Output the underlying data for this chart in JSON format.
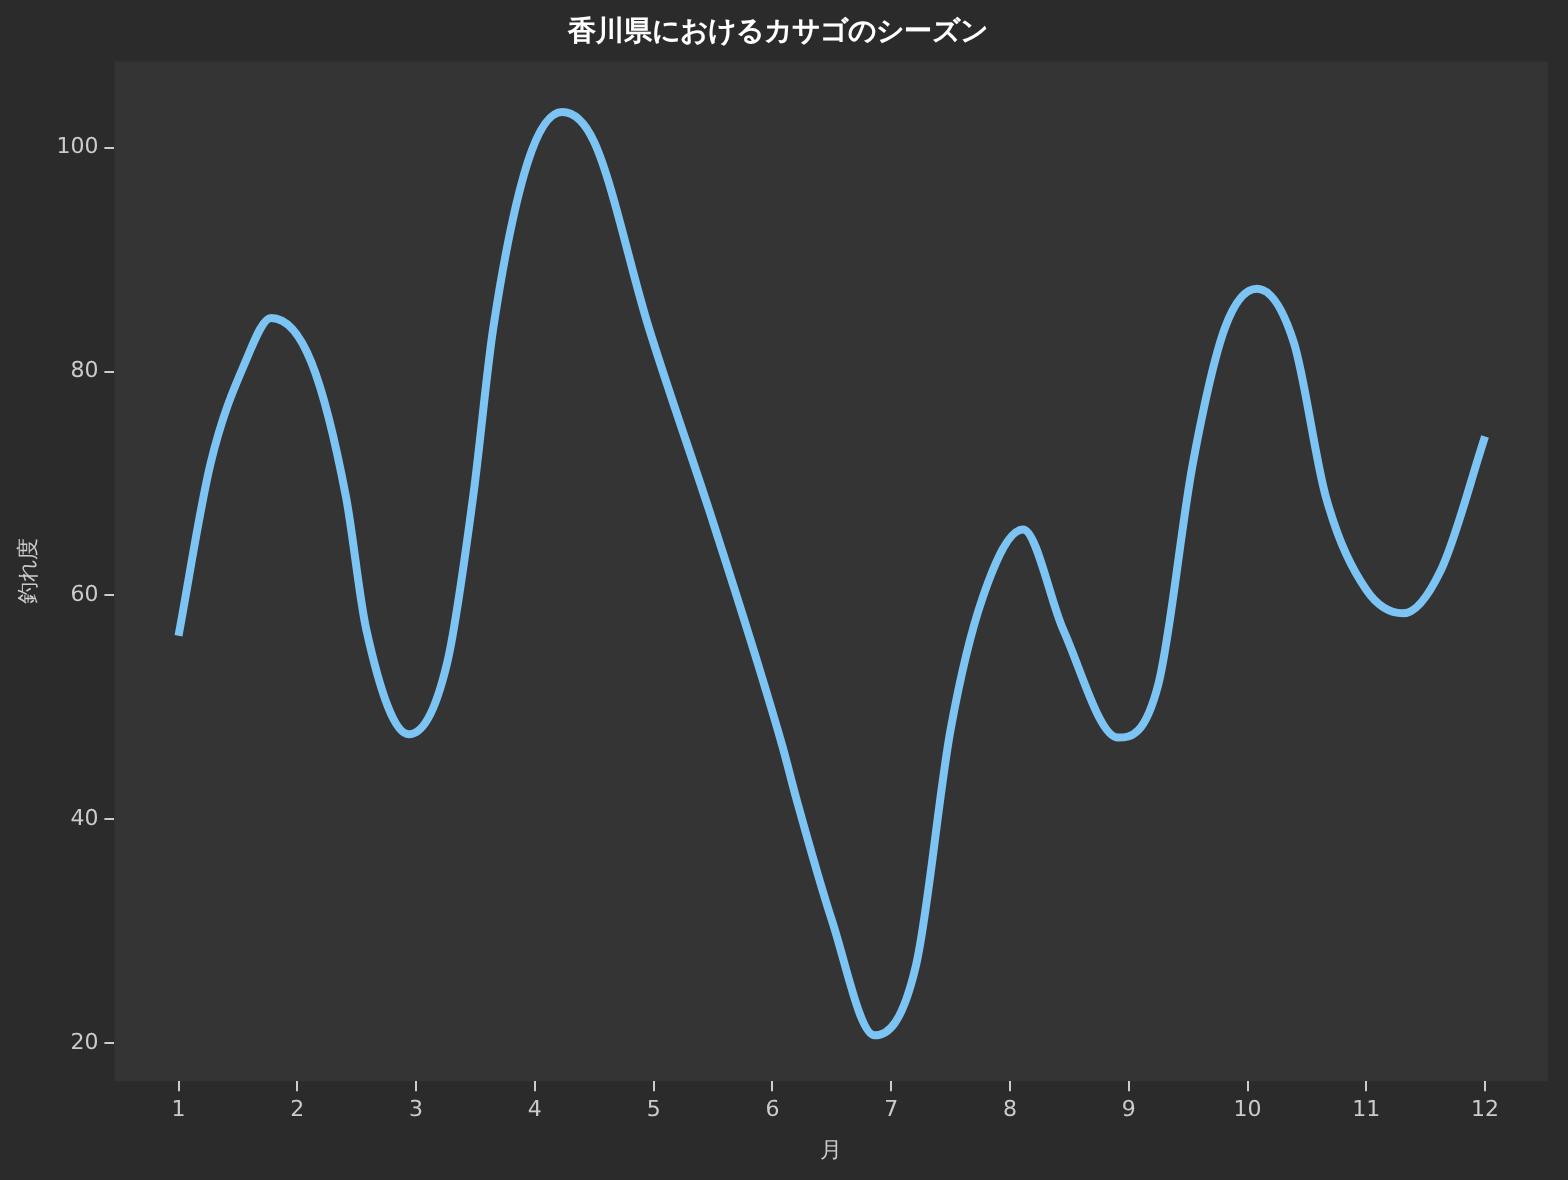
{
  "chart_data": {
    "type": "line",
    "title": "香川県におけるカサゴのシーズン",
    "xlabel": "月",
    "ylabel": "釣れ度",
    "x": [
      1,
      1.27,
      1.56,
      1.78,
      2.12,
      2.41,
      2.58,
      2.94,
      3.26,
      3.48,
      3.65,
      3.94,
      4.23,
      4.5,
      4.96,
      5.52,
      6.08,
      6.2,
      6.5,
      6.86,
      7.21,
      7.5,
      7.77,
      8.11,
      8.45,
      8.91,
      9.25,
      9.54,
      9.81,
      10.08,
      10.39,
      10.66,
      11.0,
      11.31,
      11.63,
      12
    ],
    "series": [
      {
        "color": "#7cc4f4",
        "values": [
          56.4,
          71.8,
          80.8,
          84.8,
          80.8,
          68.8,
          57,
          47.6,
          53.9,
          68.8,
          83.9,
          98.7,
          103.2,
          100.5,
          83.9,
          65.9,
          46.7,
          41.9,
          31,
          20.7,
          27,
          48,
          59.8,
          65.9,
          56.9,
          47.3,
          52.1,
          71.8,
          83.9,
          87.4,
          82.6,
          68.8,
          60.5,
          58.4,
          62.3,
          74.2
        ]
      }
    ],
    "xlim": [
      0.46,
      12.53
    ],
    "xticks": [
      1,
      2,
      3,
      4,
      5,
      6,
      7,
      8,
      9,
      10,
      11,
      12
    ],
    "ylim": [
      16.6,
      107.7
    ],
    "yticks": [
      20,
      40,
      60,
      80,
      100
    ],
    "grid": false,
    "legend": false,
    "marker": "none",
    "line_style": "solid"
  }
}
